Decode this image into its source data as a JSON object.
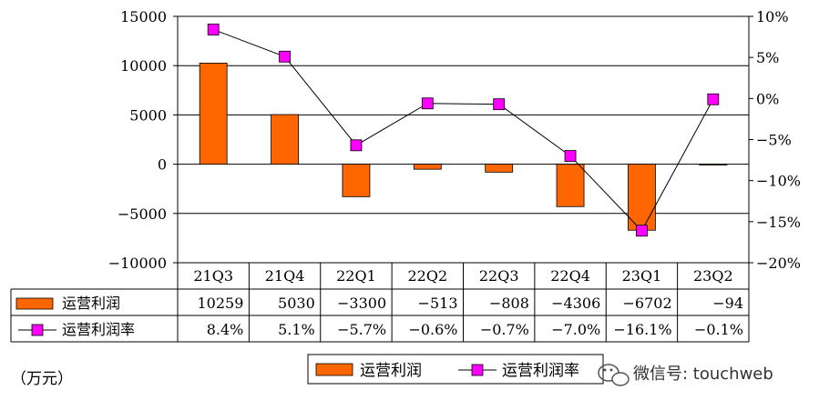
{
  "chart_data": {
    "type": "bar",
    "categories": [
      "21Q3",
      "21Q4",
      "22Q1",
      "22Q2",
      "22Q3",
      "22Q4",
      "23Q1",
      "23Q2"
    ],
    "series": [
      {
        "name": "运营利润",
        "type": "bar",
        "axis": "left",
        "color": "#ff6600",
        "values": [
          10259,
          5030,
          -3300,
          -513,
          -808,
          -4306,
          -6702,
          -94
        ]
      },
      {
        "name": "运营利润率",
        "type": "line",
        "axis": "right",
        "color": "#ff00ff",
        "values": [
          8.4,
          5.1,
          -5.7,
          -0.6,
          -0.7,
          -7.0,
          -16.1,
          -0.1
        ]
      }
    ],
    "left_axis": {
      "min": -10000,
      "max": 15000,
      "step": 5000,
      "ticks": [
        "15000",
        "10000",
        "5000",
        "0",
        "−5000",
        "−10000"
      ]
    },
    "right_axis": {
      "min": -20,
      "max": 10,
      "step": 5,
      "ticks": [
        "10%",
        "5%",
        "0%",
        "−5%",
        "−10%",
        "−15%",
        "−20%"
      ]
    },
    "grid": true,
    "legend_position": "bottom"
  },
  "table": {
    "rows": [
      {
        "label": "运营利润",
        "cells": [
          "10259",
          "5030",
          "−3300",
          "−513",
          "−808",
          "−4306",
          "−6702",
          "−94"
        ]
      },
      {
        "label": "运营利润率",
        "cells": [
          "8.4%",
          "5.1%",
          "−5.7%",
          "−0.6%",
          "−0.7%",
          "−7.0%",
          "−16.1%",
          "−0.1%"
        ]
      }
    ]
  },
  "legend": {
    "items": [
      "运营利润",
      "运营利润率"
    ]
  },
  "unit_label": "（万元）",
  "watermark": "微信号: touchweb"
}
